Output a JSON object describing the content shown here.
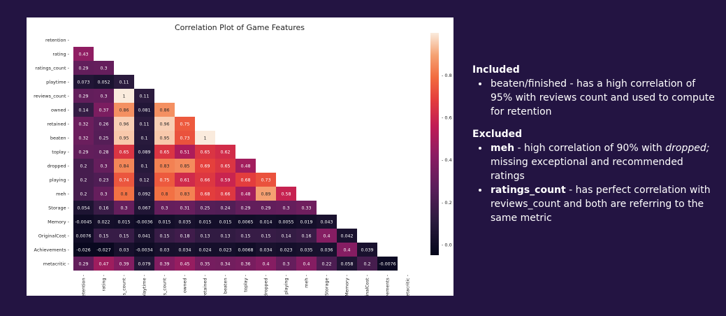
{
  "chart_data": {
    "type": "heatmap",
    "title": "Correlation Plot of Game Features",
    "labels": [
      "retention",
      "rating",
      "ratings_count",
      "playtime",
      "reviews_count",
      "owned",
      "retained",
      "beaten",
      "toplay",
      "dropped",
      "playing",
      "meh",
      "Storage",
      "Memory",
      "OriginalCost",
      "Achievements",
      "metacritic"
    ],
    "matrix_lower": [
      [],
      [
        0.43
      ],
      [
        0.29,
        0.3
      ],
      [
        0.073,
        0.052,
        0.11
      ],
      [
        0.29,
        0.3,
        1,
        0.11
      ],
      [
        0.14,
        0.37,
        0.86,
        0.081,
        0.86
      ],
      [
        0.32,
        0.26,
        0.96,
        0.11,
        0.96,
        0.75
      ],
      [
        0.32,
        0.25,
        0.95,
        0.1,
        0.95,
        0.73,
        1
      ],
      [
        0.29,
        0.28,
        0.65,
        0.089,
        0.65,
        0.51,
        0.65,
        0.62
      ],
      [
        0.2,
        0.3,
        0.84,
        0.1,
        0.83,
        0.85,
        0.69,
        0.65,
        0.48
      ],
      [
        0.2,
        0.23,
        0.74,
        0.12,
        0.75,
        0.61,
        0.66,
        0.59,
        0.68,
        0.73
      ],
      [
        0.2,
        0.3,
        0.8,
        0.092,
        0.8,
        0.83,
        0.68,
        0.66,
        0.48,
        0.89,
        0.58
      ],
      [
        0.054,
        0.16,
        0.3,
        0.067,
        0.3,
        0.31,
        0.25,
        0.24,
        0.29,
        0.29,
        0.3,
        0.33
      ],
      [
        -0.0045,
        0.022,
        0.015,
        -0.0036,
        0.015,
        0.035,
        0.015,
        0.015,
        0.0065,
        0.014,
        0.0055,
        0.019,
        0.043
      ],
      [
        0.0076,
        0.15,
        0.15,
        0.041,
        0.15,
        0.18,
        0.13,
        0.13,
        0.15,
        0.15,
        0.14,
        0.16,
        0.4,
        0.042
      ],
      [
        -0.026,
        -0.027,
        0.03,
        -0.0034,
        0.03,
        0.034,
        0.024,
        0.023,
        0.0068,
        0.034,
        0.023,
        0.035,
        0.036,
        0.4,
        0.039
      ],
      [
        0.29,
        0.47,
        0.39,
        0.079,
        0.39,
        0.45,
        0.35,
        0.34,
        0.36,
        0.4,
        0.3,
        0.4,
        0.22,
        0.058,
        0.2,
        -0.0076
      ]
    ],
    "colorbar": {
      "min": -0.05,
      "max": 1.0,
      "ticks": [
        "0.0",
        "0.2",
        "0.4",
        "0.6",
        "0.8"
      ],
      "tick_values": [
        0,
        0.2,
        0.4,
        0.6,
        0.8
      ]
    },
    "colormap": "rocket",
    "grid": false
  },
  "notes": {
    "included": {
      "title": "Included",
      "items": [
        {
          "bold": "",
          "text": "beaten/finished - has a high correlation of 95% with reviews count and used to compute for retention"
        }
      ]
    },
    "excluded": {
      "title": "Excluded",
      "items": [
        {
          "bold": "meh",
          "pre": " - high correlation of 90% with ",
          "italic": "dropped;",
          "post": " missing exceptional and recommended ratings"
        },
        {
          "bold": "ratings_count",
          "pre": " - has perfect correlation with reviews_count and both are referring to the same metric",
          "italic": "",
          "post": ""
        }
      ]
    }
  }
}
